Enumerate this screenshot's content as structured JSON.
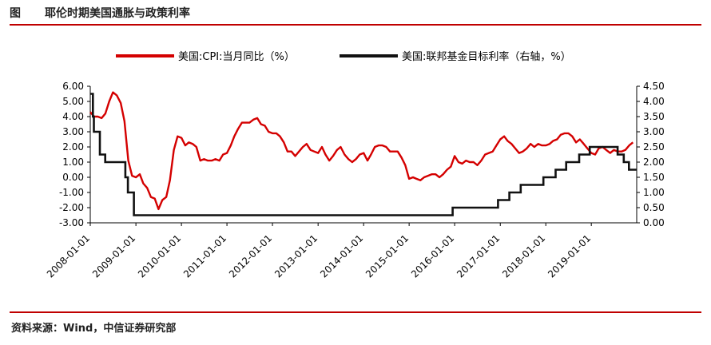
{
  "header": {
    "prefix": "图",
    "title": "耶伦时期美国通胀与政策利率"
  },
  "footer": {
    "source": "资料来源：Wind，中信证券研究部"
  },
  "colors": {
    "cpi": "#d40000",
    "fed": "#111111",
    "accent": "#c00000"
  },
  "chart_data": {
    "type": "line",
    "title": "耶伦时期美国通胀与政策利率",
    "x_tick_labels": [
      "2008-01-01",
      "2009-01-01",
      "2010-01-01",
      "2011-01-01",
      "2012-01-01",
      "2013-01-01",
      "2014-01-01",
      "2015-01-01",
      "2016-01-01",
      "2017-01-01",
      "2018-01-01",
      "2019-01-01"
    ],
    "y_left": {
      "ylim": [
        -3,
        6
      ],
      "ticks": [
        "-3.00",
        "-2.00",
        "-1.00",
        "0.00",
        "1.00",
        "2.00",
        "3.00",
        "4.00",
        "5.00",
        "6.00"
      ]
    },
    "y_right": {
      "ylim": [
        0,
        4.5
      ],
      "ticks": [
        "0.00",
        "0.50",
        "1.00",
        "1.50",
        "2.00",
        "2.50",
        "3.00",
        "3.50",
        "4.00",
        "4.50"
      ]
    },
    "legend_placement": "top",
    "grid": false,
    "series": [
      {
        "name": "美国:CPI:当月同比（%）",
        "axis": "left",
        "x": [
          "2008-01",
          "2008-02",
          "2008-03",
          "2008-04",
          "2008-05",
          "2008-06",
          "2008-07",
          "2008-08",
          "2008-09",
          "2008-10",
          "2008-11",
          "2008-12",
          "2009-01",
          "2009-02",
          "2009-03",
          "2009-04",
          "2009-05",
          "2009-06",
          "2009-07",
          "2009-08",
          "2009-09",
          "2009-10",
          "2009-11",
          "2009-12",
          "2010-01",
          "2010-02",
          "2010-03",
          "2010-04",
          "2010-05",
          "2010-06",
          "2010-07",
          "2010-08",
          "2010-09",
          "2010-10",
          "2010-11",
          "2010-12",
          "2011-01",
          "2011-02",
          "2011-03",
          "2011-04",
          "2011-05",
          "2011-06",
          "2011-07",
          "2011-08",
          "2011-09",
          "2011-10",
          "2011-11",
          "2011-12",
          "2012-01",
          "2012-02",
          "2012-03",
          "2012-04",
          "2012-05",
          "2012-06",
          "2012-07",
          "2012-08",
          "2012-09",
          "2012-10",
          "2012-11",
          "2012-12",
          "2013-01",
          "2013-02",
          "2013-03",
          "2013-04",
          "2013-05",
          "2013-06",
          "2013-07",
          "2013-08",
          "2013-09",
          "2013-10",
          "2013-11",
          "2013-12",
          "2014-01",
          "2014-02",
          "2014-03",
          "2014-04",
          "2014-05",
          "2014-06",
          "2014-07",
          "2014-08",
          "2014-09",
          "2014-10",
          "2014-11",
          "2014-12",
          "2015-01",
          "2015-02",
          "2015-03",
          "2015-04",
          "2015-05",
          "2015-06",
          "2015-07",
          "2015-08",
          "2015-09",
          "2015-10",
          "2015-11",
          "2015-12",
          "2016-01",
          "2016-02",
          "2016-03",
          "2016-04",
          "2016-05",
          "2016-06",
          "2016-07",
          "2016-08",
          "2016-09",
          "2016-10",
          "2016-11",
          "2016-12",
          "2017-01",
          "2017-02",
          "2017-03",
          "2017-04",
          "2017-05",
          "2017-06",
          "2017-07",
          "2017-08",
          "2017-09",
          "2017-10",
          "2017-11",
          "2017-12",
          "2018-01",
          "2018-02",
          "2018-03",
          "2018-04",
          "2018-05",
          "2018-06",
          "2018-07",
          "2018-08",
          "2018-09",
          "2018-10",
          "2018-11",
          "2018-12",
          "2019-01",
          "2019-02",
          "2019-03",
          "2019-04",
          "2019-05",
          "2019-06",
          "2019-07",
          "2019-08",
          "2019-09",
          "2019-10",
          "2019-11",
          "2019-12"
        ],
        "values": [
          4.3,
          4.0,
          4.0,
          3.9,
          4.2,
          5.0,
          5.6,
          5.4,
          4.9,
          3.7,
          1.1,
          0.1,
          0.0,
          0.2,
          -0.4,
          -0.7,
          -1.3,
          -1.4,
          -2.1,
          -1.5,
          -1.3,
          -0.2,
          1.8,
          2.7,
          2.6,
          2.1,
          2.3,
          2.2,
          2.0,
          1.1,
          1.2,
          1.1,
          1.1,
          1.2,
          1.1,
          1.5,
          1.6,
          2.1,
          2.7,
          3.2,
          3.6,
          3.6,
          3.6,
          3.8,
          3.9,
          3.5,
          3.4,
          3.0,
          2.9,
          2.9,
          2.7,
          2.3,
          1.7,
          1.7,
          1.4,
          1.7,
          2.0,
          2.2,
          1.8,
          1.7,
          1.6,
          2.0,
          1.5,
          1.1,
          1.4,
          1.8,
          2.0,
          1.5,
          1.2,
          1.0,
          1.2,
          1.5,
          1.6,
          1.1,
          1.5,
          2.0,
          2.1,
          2.1,
          2.0,
          1.7,
          1.7,
          1.7,
          1.3,
          0.8,
          -0.1,
          0.0,
          -0.1,
          -0.2,
          0.0,
          0.1,
          0.2,
          0.2,
          0.0,
          0.2,
          0.5,
          0.7,
          1.4,
          1.0,
          0.9,
          1.1,
          1.0,
          1.0,
          0.8,
          1.1,
          1.5,
          1.6,
          1.7,
          2.1,
          2.5,
          2.7,
          2.4,
          2.2,
          1.9,
          1.6,
          1.7,
          1.9,
          2.2,
          2.0,
          2.2,
          2.1,
          2.1,
          2.2,
          2.4,
          2.5,
          2.8,
          2.9,
          2.9,
          2.7,
          2.3,
          2.5,
          2.2,
          1.9,
          1.6,
          1.5,
          1.9,
          2.0,
          1.8,
          1.6,
          1.8,
          1.7,
          1.7,
          1.8,
          2.1,
          2.3
        ]
      },
      {
        "name": "美国:联邦基金目标利率（右轴，%）",
        "axis": "right",
        "step": [
          [
            "2008-01-01",
            4.25
          ],
          [
            "2008-01-22",
            3.5
          ],
          [
            "2008-01-30",
            3.0
          ],
          [
            "2008-03-18",
            2.25
          ],
          [
            "2008-04-30",
            2.0
          ],
          [
            "2008-10-08",
            1.5
          ],
          [
            "2008-10-29",
            1.0
          ],
          [
            "2008-12-16",
            0.25
          ],
          [
            "2015-12-16",
            0.5
          ],
          [
            "2016-12-14",
            0.75
          ],
          [
            "2017-03-15",
            1.0
          ],
          [
            "2017-06-14",
            1.25
          ],
          [
            "2017-12-13",
            1.5
          ],
          [
            "2018-03-21",
            1.75
          ],
          [
            "2018-06-13",
            2.0
          ],
          [
            "2018-09-26",
            2.25
          ],
          [
            "2018-12-19",
            2.5
          ],
          [
            "2019-07-31",
            2.25
          ],
          [
            "2019-09-18",
            2.0
          ],
          [
            "2019-10-30",
            1.75
          ],
          [
            "2019-12-31",
            1.75
          ]
        ]
      }
    ]
  }
}
